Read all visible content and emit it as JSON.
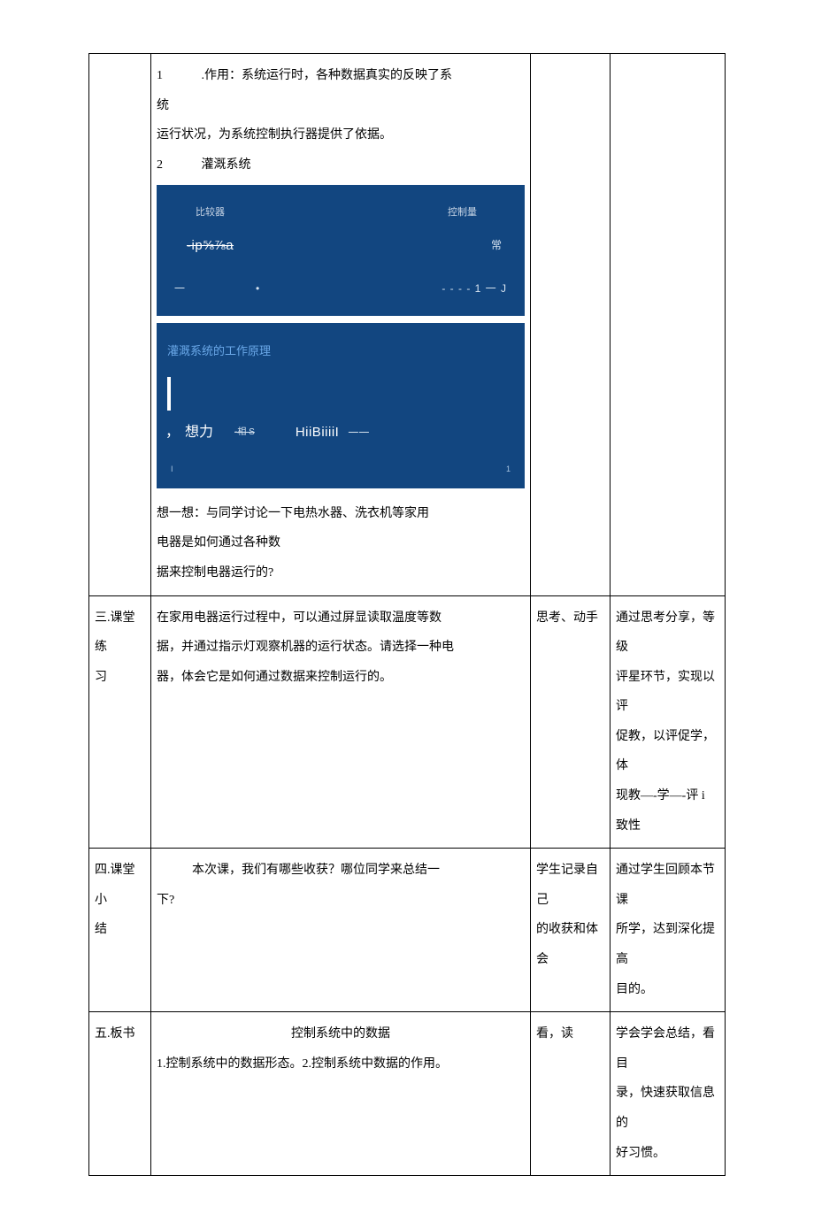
{
  "colors": {
    "diagram_bg": "#124680",
    "diagram_accent": "#6aa8e8",
    "border": "#000000",
    "page_bg": "#ffffff",
    "text": "#000000"
  },
  "row1": {
    "col2": {
      "line1a": "1",
      "line1b": ".作用：系统运行时，各种数据真实的反映了系",
      "line1c": "统",
      "line2": "运行状况，为系统控制执行器提供了依据。",
      "line3a": "2",
      "line3b": "灌溉系统",
      "diagram1": {
        "label1": "比较器",
        "label2": "控制量",
        "special": "-ip⅝⅞a",
        "chang": "常",
        "dash": "一",
        "dot": "•",
        "dashes_end": "- - - - 1 一 J"
      },
      "diagram2": {
        "title": "灌溉系统的工作原理",
        "comma": "，",
        "xiangli": "想力",
        "xiangs": "-相 S",
        "hiib": "HiiBiiiiI",
        "yiy": "一一",
        "bot_l": "I",
        "bot_r": "1"
      },
      "think_line1": "想一想：与同学讨论一下电热水器、洗衣机等家用",
      "think_line2": "电器是如何通过各种数",
      "think_line3": "据来控制电器运行的?"
    }
  },
  "row2": {
    "col1a": "三.课堂练",
    "col1b": "习",
    "col2a": "在家用电器运行过程中，可以通过屏显读取温度等数",
    "col2b": "据，并通过指示灯观察机器的运行状态。请选择一种电",
    "col2c": "器，体会它是如何通过数据来控制运行的。",
    "col3": "思考、动手",
    "col4a": "通过思考分享，等级",
    "col4b": "评星环节，实现以评",
    "col4c": "促教，以评促学，体",
    "col4d": "现教—-学—-评 i",
    "col4e": "致性"
  },
  "row3": {
    "col1a": "四.课堂小",
    "col1b": "结",
    "col2a": "本次课，我们有哪些收获？哪位同学来总结一",
    "col2b": "下?",
    "col3a": "学生记录自己",
    "col3b": "的收获和体会",
    "col4a": "通过学生回顾本节课",
    "col4b": "所学，达到深化提高",
    "col4c": "目的。"
  },
  "row4": {
    "col1": "五.板书",
    "col2_title": "控制系统中的数据",
    "col2_body": "1.控制系统中的数据形态。2.控制系统中数据的作用。",
    "col3": "看，读",
    "col4a": "学会学会总结，看目",
    "col4b": "录，快速获取信息的",
    "col4c": "好习惯。"
  }
}
